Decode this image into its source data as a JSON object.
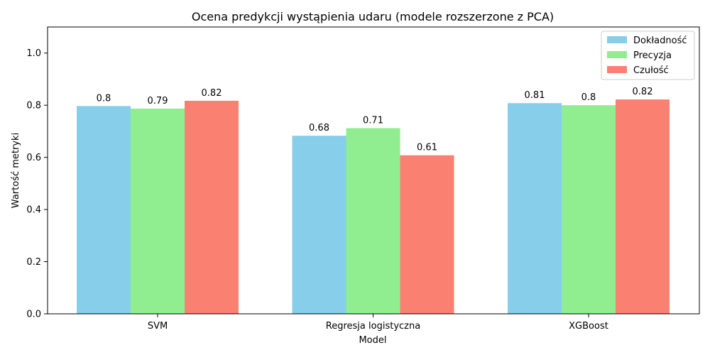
{
  "chart_data": {
    "type": "bar",
    "title": "Ocena predykcji wystąpienia udaru (modele rozszerzone z PCA)",
    "xlabel": "Model",
    "ylabel": "Wartość metryki",
    "categories": [
      "SVM",
      "Regresja logistyczna",
      "XGBoost"
    ],
    "series": [
      {
        "name": "Dokładność",
        "color": "#87ceeb",
        "values": [
          0.797,
          0.683,
          0.808
        ],
        "labels": [
          "0.8",
          "0.68",
          "0.81"
        ]
      },
      {
        "name": "Precyzja",
        "color": "#90ee90",
        "values": [
          0.787,
          0.712,
          0.8
        ],
        "labels": [
          "0.79",
          "0.71",
          "0.8"
        ]
      },
      {
        "name": "Czułość",
        "color": "#fa8072",
        "values": [
          0.817,
          0.608,
          0.822
        ],
        "labels": [
          "0.82",
          "0.61",
          "0.82"
        ]
      }
    ],
    "ylim": [
      0,
      1.1
    ],
    "yticks": [
      "0.0",
      "0.2",
      "0.4",
      "0.6",
      "0.8",
      "1.0"
    ],
    "grid": false,
    "legend_position": "top-right"
  }
}
